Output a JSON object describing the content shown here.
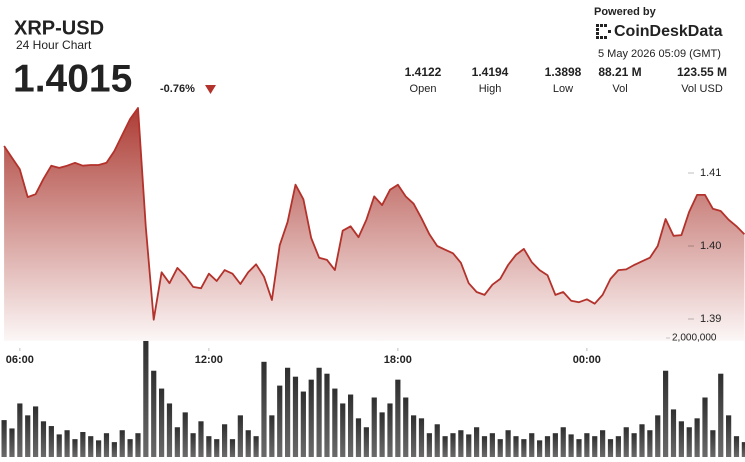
{
  "header": {
    "title": "XRP-USD",
    "subtitle": "24 Hour Chart",
    "price": "1.4015",
    "change": "-0.76%",
    "powered_by": "Powered by",
    "brand": "CoinDeskData",
    "timestamp": "5 May 2026 05:09 (GMT)"
  },
  "stats": [
    {
      "value": "1.4122",
      "label": "Open"
    },
    {
      "value": "1.4194",
      "label": "High"
    },
    {
      "value": "1.3898",
      "label": "Low"
    },
    {
      "value": "88.21 M",
      "label": "Vol"
    },
    {
      "value": "123.55 M",
      "label": "Vol USD"
    }
  ],
  "chart_data": {
    "type": "line",
    "x": [
      5.5,
      5.75,
      6,
      6.25,
      6.5,
      6.75,
      7,
      7.25,
      7.5,
      7.75,
      8,
      8.25,
      8.5,
      8.75,
      9,
      9.25,
      9.5,
      9.75,
      10,
      10.25,
      10.5,
      10.75,
      11,
      11.25,
      11.5,
      11.75,
      12,
      12.25,
      12.5,
      12.75,
      13,
      13.25,
      13.5,
      13.75,
      14,
      14.25,
      14.5,
      14.75,
      15,
      15.25,
      15.5,
      15.75,
      16,
      16.25,
      16.5,
      16.75,
      17,
      17.25,
      17.5,
      17.75,
      18,
      18.25,
      18.5,
      18.75,
      19,
      19.25,
      19.5,
      19.75,
      20,
      20.25,
      20.5,
      20.75,
      21,
      21.25,
      21.5,
      21.75,
      22,
      22.25,
      22.5,
      22.75,
      23,
      23.25,
      23.5,
      23.75,
      24,
      24.25,
      24.5,
      24.75,
      25,
      25.25,
      25.5,
      25.75,
      26,
      26.25,
      26.5,
      26.75,
      27,
      27.25,
      27.5,
      27.75,
      28,
      28.25,
      28.5,
      28.75,
      29
    ],
    "xlim": [
      5.37,
      29.02
    ],
    "xticks": [
      {
        "value": 6,
        "label": "06:00"
      },
      {
        "value": 12,
        "label": "12:00"
      },
      {
        "value": 18,
        "label": "18:00"
      },
      {
        "value": 24,
        "label": "00:00"
      }
    ],
    "ylim": [
      1.387,
      1.42
    ],
    "yticks": [
      1.41,
      {
        "value": 1.4,
        "label": "1.40"
      },
      1.39
    ],
    "y2lim": [
      0,
      2000000
    ],
    "y2ticks": [
      {
        "value": 2000000,
        "label": "2,000,000"
      }
    ],
    "series": [
      {
        "color": "#b3322b",
        "values": [
          1.4137,
          1.4121,
          1.4105,
          1.4067,
          1.4071,
          1.4092,
          1.411,
          1.4107,
          1.411,
          1.4114,
          1.411,
          1.4111,
          1.4111,
          1.4114,
          1.413,
          1.4152,
          1.4174,
          1.4189,
          1.4026,
          1.3899,
          1.3964,
          1.3949,
          1.397,
          1.3959,
          1.3944,
          1.3942,
          1.3962,
          1.3952,
          1.3967,
          1.3962,
          1.3948,
          1.3964,
          1.3975,
          1.3958,
          1.3926,
          1.4001,
          1.4033,
          1.4084,
          1.4064,
          1.4011,
          1.3984,
          1.3981,
          1.3967,
          1.4021,
          1.4027,
          1.4012,
          1.4036,
          1.4068,
          1.4056,
          1.4077,
          1.4084,
          1.4068,
          1.4058,
          1.4038,
          1.4016,
          1.4,
          1.3995,
          1.399,
          1.3977,
          1.3949,
          1.3937,
          1.3933,
          1.3947,
          1.3955,
          1.3974,
          1.3988,
          1.3996,
          1.3978,
          1.3967,
          1.396,
          1.3933,
          1.3937,
          1.3925,
          1.3923,
          1.3927,
          1.3921,
          1.3933,
          1.3955,
          1.3967,
          1.3968,
          1.3974,
          1.3979,
          1.3984,
          1.4,
          1.4037,
          1.4014,
          1.4015,
          1.4047,
          1.407,
          1.407,
          1.4051,
          1.4048,
          1.4036,
          1.4027,
          1.4016
        ]
      },
      {
        "color": "#4d4d4d",
        "axis": "y2",
        "values": [
          620000,
          480000,
          900000,
          700000,
          850000,
          600000,
          520000,
          380000,
          450000,
          300000,
          420000,
          350000,
          280000,
          400000,
          250000,
          450000,
          300000,
          400000,
          1950000,
          1450000,
          1150000,
          900000,
          500000,
          750000,
          400000,
          600000,
          350000,
          300000,
          550000,
          300000,
          700000,
          450000,
          350000,
          1600000,
          700000,
          1200000,
          1500000,
          1350000,
          1100000,
          1300000,
          1500000,
          1400000,
          1150000,
          900000,
          1050000,
          650000,
          500000,
          1000000,
          750000,
          900000,
          1300000,
          1000000,
          700000,
          650000,
          400000,
          550000,
          350000,
          400000,
          450000,
          380000,
          500000,
          350000,
          400000,
          300000,
          450000,
          350000,
          300000,
          400000,
          280000,
          350000,
          400000,
          500000,
          380000,
          300000,
          400000,
          350000,
          450000,
          300000,
          350000,
          500000,
          400000,
          550000,
          450000,
          700000,
          1450000,
          800000,
          600000,
          500000,
          650000,
          1000000,
          450000,
          1400000,
          700000,
          350000,
          250000
        ]
      }
    ]
  }
}
